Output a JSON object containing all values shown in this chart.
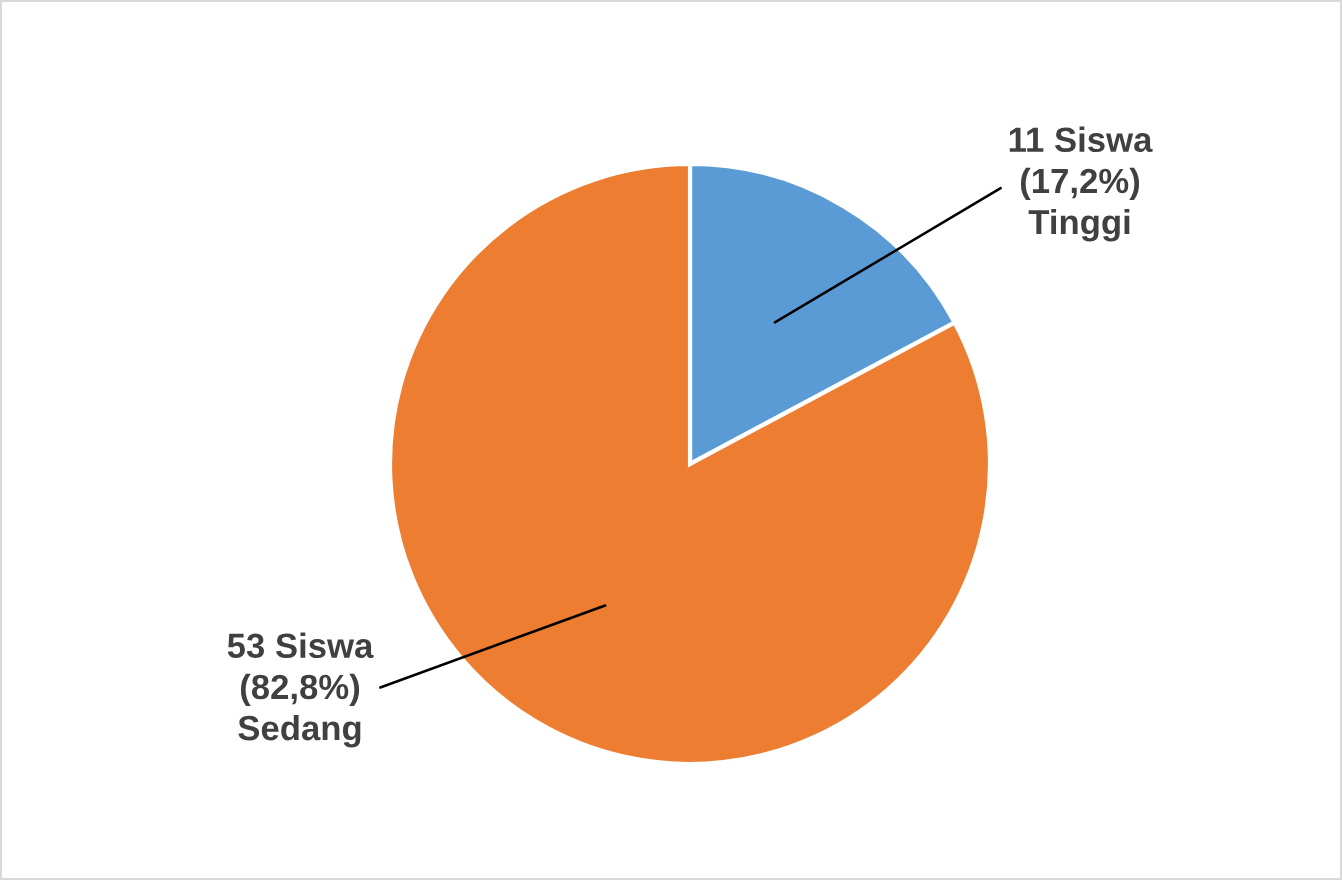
{
  "chart_data": {
    "type": "pie",
    "categories": [
      "Tinggi",
      "Sedang"
    ],
    "values": [
      11,
      53
    ],
    "value_labels": [
      "11 Siswa\n(17,2%)",
      "53 Siswa\n(82,8%)"
    ],
    "colors": [
      "#5b9bd5",
      "#ed7d31"
    ],
    "legend": false
  }
}
